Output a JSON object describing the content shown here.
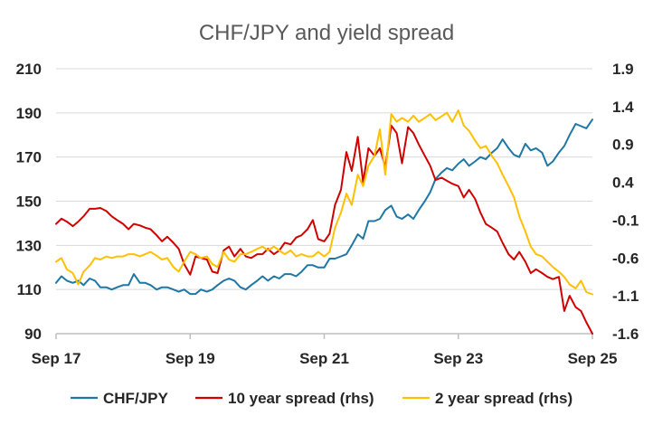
{
  "chart_data": {
    "type": "line",
    "title": "CHF/JPY and yield spread",
    "x_tick_labels": [
      "Sep 17",
      "Sep 19",
      "Sep 21",
      "Sep 23",
      "Sep 25"
    ],
    "x_ticks": [
      2017.67,
      2019.67,
      2021.67,
      2023.67,
      2025.67
    ],
    "x_range": [
      2017.67,
      2025.67
    ],
    "y_left": {
      "ticks": [
        "90",
        "110",
        "130",
        "150",
        "170",
        "190",
        "210"
      ],
      "ylim": [
        90,
        210
      ]
    },
    "y_right": {
      "ticks": [
        "-1.6",
        "-1.1",
        "-0.6",
        "-0.1",
        "0.4",
        "0.9",
        "1.4",
        "1.9"
      ],
      "ylim": [
        -1.6,
        1.9
      ]
    },
    "grid": "horizontal",
    "legend_position": "bottom",
    "colors": {
      "chfjpy": "#1f77a4",
      "ten_year": "#d00000",
      "two_year": "#ffc000"
    },
    "series": [
      {
        "name": "CHF/JPY",
        "axis": "left",
        "x": [
          2017.67,
          2017.75,
          2017.83,
          2017.92,
          2018.0,
          2018.08,
          2018.17,
          2018.25,
          2018.33,
          2018.42,
          2018.5,
          2018.58,
          2018.67,
          2018.75,
          2018.83,
          2018.92,
          2019.0,
          2019.08,
          2019.17,
          2019.25,
          2019.33,
          2019.42,
          2019.5,
          2019.58,
          2019.67,
          2019.75,
          2019.83,
          2019.92,
          2020.0,
          2020.08,
          2020.17,
          2020.25,
          2020.33,
          2020.42,
          2020.5,
          2020.58,
          2020.67,
          2020.75,
          2020.83,
          2020.92,
          2021.0,
          2021.08,
          2021.17,
          2021.25,
          2021.33,
          2021.42,
          2021.5,
          2021.58,
          2021.67,
          2021.75,
          2021.83,
          2021.92,
          2022.0,
          2022.08,
          2022.17,
          2022.25,
          2022.33,
          2022.42,
          2022.5,
          2022.58,
          2022.67,
          2022.75,
          2022.83,
          2022.92,
          2023.0,
          2023.08,
          2023.17,
          2023.25,
          2023.33,
          2023.42,
          2023.5,
          2023.58,
          2023.67,
          2023.75,
          2023.83,
          2023.92,
          2024.0,
          2024.08,
          2024.17,
          2024.25,
          2024.33,
          2024.42,
          2024.5,
          2024.58,
          2024.67,
          2024.75,
          2024.83,
          2024.92,
          2025.0,
          2025.08,
          2025.17,
          2025.25,
          2025.33,
          2025.42,
          2025.5,
          2025.58,
          2025.67
        ],
        "values": [
          113,
          116,
          114,
          113,
          114,
          112,
          115,
          114,
          111,
          111,
          110,
          111,
          112,
          112,
          117,
          113,
          113,
          112,
          110,
          111,
          111,
          110,
          109,
          110,
          108,
          108,
          110,
          109,
          110,
          112,
          114,
          115,
          114,
          111,
          110,
          112,
          114,
          116,
          114,
          116,
          115,
          117,
          117,
          116,
          118,
          121,
          121,
          120,
          120,
          124,
          124,
          125,
          126,
          130,
          135,
          133,
          141,
          141,
          142,
          146,
          148,
          143,
          142,
          144,
          142,
          146,
          150,
          154,
          160,
          163,
          165,
          164,
          167,
          169,
          166,
          168,
          170,
          169,
          172,
          174,
          178,
          174,
          171,
          170,
          176,
          173,
          174,
          172,
          166,
          168,
          172,
          175,
          180,
          185,
          184,
          183,
          187
        ]
      },
      {
        "name": "10 year spread (rhs)",
        "axis": "right",
        "x": [
          2017.67,
          2017.75,
          2017.83,
          2017.92,
          2018.0,
          2018.08,
          2018.17,
          2018.25,
          2018.33,
          2018.42,
          2018.5,
          2018.58,
          2018.67,
          2018.75,
          2018.83,
          2018.92,
          2019.0,
          2019.08,
          2019.17,
          2019.25,
          2019.33,
          2019.42,
          2019.5,
          2019.58,
          2019.67,
          2019.75,
          2019.83,
          2019.92,
          2020.0,
          2020.08,
          2020.17,
          2020.25,
          2020.33,
          2020.42,
          2020.5,
          2020.58,
          2020.67,
          2020.75,
          2020.83,
          2020.92,
          2021.0,
          2021.08,
          2021.17,
          2021.25,
          2021.33,
          2021.42,
          2021.5,
          2021.58,
          2021.67,
          2021.75,
          2021.83,
          2021.92,
          2022.0,
          2022.08,
          2022.17,
          2022.25,
          2022.33,
          2022.42,
          2022.5,
          2022.58,
          2022.67,
          2022.75,
          2022.83,
          2022.92,
          2023.0,
          2023.08,
          2023.17,
          2023.25,
          2023.33,
          2023.42,
          2023.5,
          2023.58,
          2023.67,
          2023.75,
          2023.83,
          2023.92,
          2024.0,
          2024.08,
          2024.17,
          2024.25,
          2024.33,
          2024.42,
          2024.5,
          2024.58,
          2024.67,
          2024.75,
          2024.83,
          2024.92,
          2025.0,
          2025.08,
          2025.17,
          2025.25,
          2025.33,
          2025.42,
          2025.5,
          2025.58,
          2025.67
        ],
        "values": [
          -0.15,
          -0.08,
          -0.12,
          -0.18,
          -0.12,
          -0.05,
          0.05,
          0.05,
          0.06,
          0.02,
          -0.05,
          -0.1,
          -0.15,
          -0.22,
          -0.15,
          -0.17,
          -0.2,
          -0.22,
          -0.3,
          -0.38,
          -0.32,
          -0.4,
          -0.48,
          -0.68,
          -0.82,
          -0.58,
          -0.6,
          -0.62,
          -0.78,
          -0.8,
          -0.5,
          -0.45,
          -0.58,
          -0.48,
          -0.58,
          -0.6,
          -0.55,
          -0.55,
          -0.48,
          -0.55,
          -0.5,
          -0.4,
          -0.42,
          -0.33,
          -0.3,
          -0.22,
          -0.1,
          -0.35,
          -0.38,
          -0.28,
          0.1,
          0.3,
          0.8,
          0.55,
          1.0,
          0.4,
          0.85,
          0.75,
          0.85,
          0.6,
          1.15,
          1.05,
          0.65,
          1.13,
          1.05,
          0.9,
          0.75,
          0.62,
          0.43,
          0.46,
          0.42,
          0.38,
          0.35,
          0.2,
          0.3,
          0.18,
          0.0,
          -0.15,
          -0.2,
          -0.25,
          -0.4,
          -0.55,
          -0.62,
          -0.52,
          -0.65,
          -0.8,
          -0.75,
          -0.8,
          -0.85,
          -0.88,
          -0.85,
          -1.3,
          -1.1,
          -1.25,
          -1.3,
          -1.45,
          -1.6
        ]
      },
      {
        "name": "2 year spread (rhs)",
        "axis": "right",
        "x": [
          2017.67,
          2017.75,
          2017.83,
          2017.92,
          2018.0,
          2018.08,
          2018.17,
          2018.25,
          2018.33,
          2018.42,
          2018.5,
          2018.58,
          2018.67,
          2018.75,
          2018.83,
          2018.92,
          2019.0,
          2019.08,
          2019.17,
          2019.25,
          2019.33,
          2019.42,
          2019.5,
          2019.58,
          2019.67,
          2019.75,
          2019.83,
          2019.92,
          2020.0,
          2020.08,
          2020.17,
          2020.25,
          2020.33,
          2020.42,
          2020.5,
          2020.58,
          2020.67,
          2020.75,
          2020.83,
          2020.92,
          2021.0,
          2021.08,
          2021.17,
          2021.25,
          2021.33,
          2021.42,
          2021.5,
          2021.58,
          2021.67,
          2021.75,
          2021.83,
          2021.92,
          2022.0,
          2022.08,
          2022.17,
          2022.25,
          2022.33,
          2022.42,
          2022.5,
          2022.58,
          2022.67,
          2022.75,
          2022.83,
          2022.92,
          2023.0,
          2023.08,
          2023.17,
          2023.25,
          2023.33,
          2023.42,
          2023.5,
          2023.58,
          2023.67,
          2023.75,
          2023.83,
          2023.92,
          2024.0,
          2024.08,
          2024.17,
          2024.25,
          2024.33,
          2024.42,
          2024.5,
          2024.58,
          2024.67,
          2024.75,
          2024.83,
          2024.92,
          2025.0,
          2025.08,
          2025.17,
          2025.25,
          2025.33,
          2025.42,
          2025.5,
          2025.58,
          2025.67
        ],
        "values": [
          -0.65,
          -0.6,
          -0.75,
          -0.8,
          -0.95,
          -0.78,
          -0.7,
          -0.6,
          -0.62,
          -0.58,
          -0.6,
          -0.58,
          -0.58,
          -0.55,
          -0.55,
          -0.58,
          -0.55,
          -0.52,
          -0.57,
          -0.62,
          -0.6,
          -0.72,
          -0.78,
          -0.65,
          -0.52,
          -0.55,
          -0.6,
          -0.58,
          -0.68,
          -0.72,
          -0.52,
          -0.62,
          -0.65,
          -0.55,
          -0.55,
          -0.52,
          -0.48,
          -0.45,
          -0.5,
          -0.45,
          -0.5,
          -0.55,
          -0.5,
          -0.58,
          -0.55,
          -0.58,
          -0.58,
          -0.52,
          -0.58,
          -0.52,
          -0.2,
          0.0,
          0.25,
          0.1,
          0.5,
          0.35,
          0.62,
          0.75,
          1.1,
          0.5,
          1.3,
          1.2,
          1.25,
          1.2,
          1.28,
          1.2,
          1.25,
          1.3,
          1.22,
          1.27,
          1.32,
          1.2,
          1.35,
          1.15,
          1.08,
          0.95,
          0.85,
          0.88,
          0.75,
          0.65,
          0.5,
          0.35,
          0.2,
          -0.05,
          -0.25,
          -0.45,
          -0.55,
          -0.58,
          -0.65,
          -0.72,
          -0.78,
          -0.85,
          -0.95,
          -1.0,
          -0.9,
          -1.05,
          -1.08
        ]
      }
    ]
  }
}
